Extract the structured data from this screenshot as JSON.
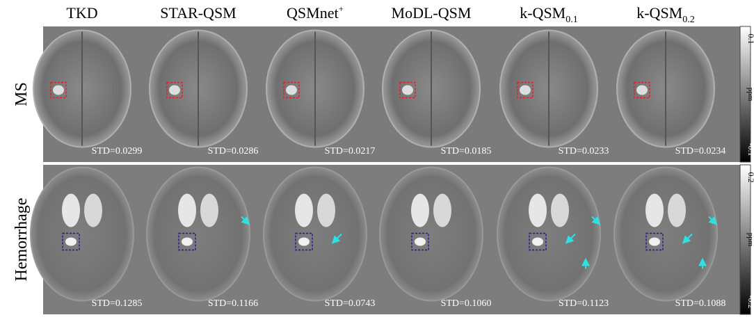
{
  "columns": [
    {
      "header": {
        "text": "TKD"
      }
    },
    {
      "header": {
        "text": "STAR-QSM"
      }
    },
    {
      "header": {
        "text": "QSMnet",
        "sup": "+"
      }
    },
    {
      "header": {
        "text": "MoDL-QSM"
      }
    },
    {
      "header": {
        "text": "k-QSM",
        "sub": "0.1"
      }
    },
    {
      "header": {
        "text": "k-QSM",
        "sub": "0.2"
      }
    }
  ],
  "rows": [
    {
      "label": "MS",
      "std": [
        "STD=0.0299",
        "STD=0.0286",
        "STD=0.0217",
        "STD=0.0185",
        "STD=0.0233",
        "STD=0.0234"
      ],
      "colorbar": {
        "max": "0.1",
        "unit": "ppm",
        "min": "-0.1"
      }
    },
    {
      "label": "Hemorrhage",
      "std": [
        "STD=0.1285",
        "STD=0.1166",
        "STD=0.0743",
        "STD=0.1060",
        "STD=0.1123",
        "STD=0.1088"
      ],
      "colorbar": {
        "max": "0.2",
        "unit": "ppm",
        "min": "-0.2"
      }
    }
  ]
}
